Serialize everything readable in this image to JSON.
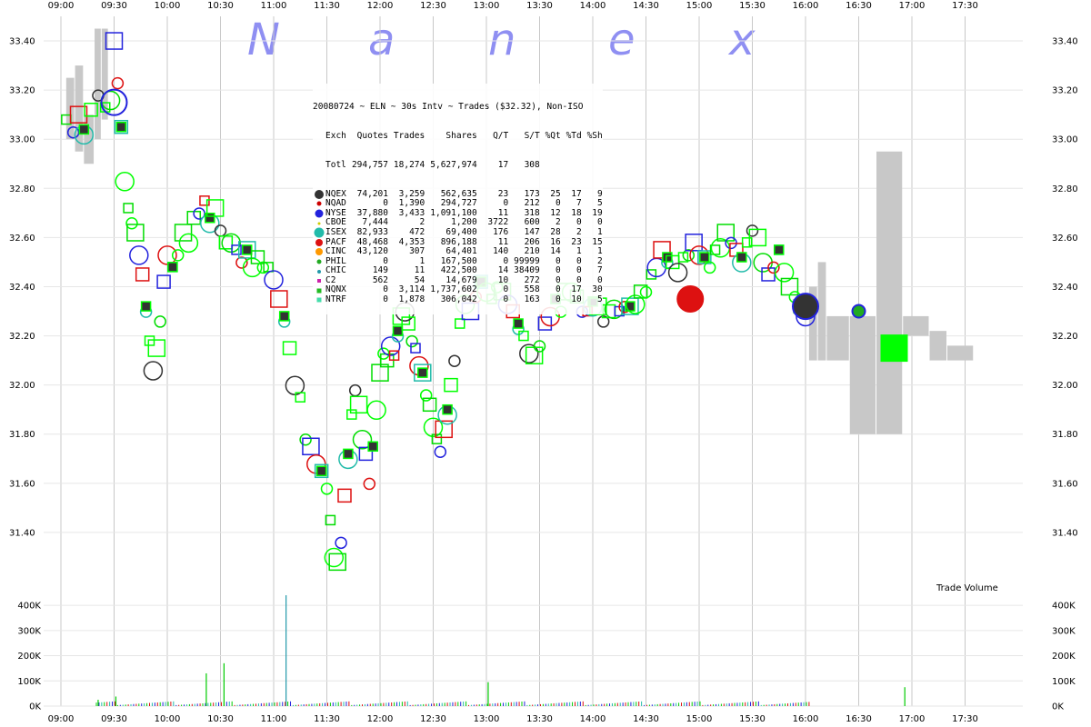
{
  "chart_data": {
    "type": "scatter",
    "title": "20080724 ~ ELN ~ 30s Intv ~ Trades ($32.32), Non-ISO",
    "watermark": [
      "N",
      "a",
      "n",
      "e",
      "x"
    ],
    "x_tick_labels": [
      "09:00",
      "09:30",
      "10:00",
      "10:30",
      "11:00",
      "11:30",
      "12:00",
      "12:30",
      "13:00",
      "13:30",
      "14:00",
      "14:30",
      "15:00",
      "15:30",
      "16:00",
      "16:30",
      "17:00",
      "17:30"
    ],
    "x_tick_minutes": [
      540,
      570,
      600,
      630,
      660,
      690,
      720,
      750,
      780,
      810,
      840,
      870,
      900,
      930,
      960,
      990,
      1020,
      1050
    ],
    "xlim_minutes": [
      540,
      1070
    ],
    "price_ticks": [
      33.4,
      33.2,
      33.0,
      32.8,
      32.6,
      32.4,
      32.2,
      32.0,
      31.8,
      31.6,
      31.4
    ],
    "price_tick_labels": [
      "33.40",
      "33.20",
      "33.00",
      "32.80",
      "32.60",
      "32.40",
      "32.20",
      "32.00",
      "31.80",
      "31.60",
      "31.40"
    ],
    "price_ylim": [
      31.2,
      33.5
    ],
    "volume_label": "Trade Volume",
    "volume_ticks": [
      0,
      100000,
      200000,
      300000,
      400000
    ],
    "volume_tick_labels": [
      "0K",
      "100K",
      "200K",
      "300K",
      "400K"
    ],
    "volume_ylim": [
      0,
      440000
    ],
    "grid": true,
    "colors": {
      "background": "#ffffff",
      "grid": "#c8c8c8",
      "nbbo_band": "#c8c8c8",
      "trade": "#00ff00"
    },
    "legend": {
      "headers": [
        "Exch",
        "Quotes",
        "Trades",
        "Shares",
        "Q/T",
        "S/T",
        "%Qt",
        "%Td",
        "%Sh"
      ],
      "total": {
        "name": "Totl",
        "quotes": "294,757",
        "trades": "18,274",
        "shares": "5,627,974",
        "qt": "17",
        "st": "308",
        "pqt": "",
        "ptd": "",
        "psh": ""
      },
      "rows": [
        {
          "name": "NQEX",
          "color": "#333333",
          "shape": "circle",
          "size": 10,
          "quotes": "74,201",
          "trades": "3,259",
          "shares": "562,635",
          "qt": "23",
          "st": "173",
          "pqt": "25",
          "ptd": "17",
          "psh": "9"
        },
        {
          "name": "NQAD",
          "color": "#cc0000",
          "shape": "circle",
          "size": 5,
          "quotes": "0",
          "trades": "1,390",
          "shares": "294,727",
          "qt": "0",
          "st": "212",
          "pqt": "0",
          "ptd": "7",
          "psh": "5"
        },
        {
          "name": "NYSE",
          "color": "#2222dd",
          "shape": "circle",
          "size": 9,
          "quotes": "37,880",
          "trades": "3,433",
          "shares": "1,091,100",
          "qt": "11",
          "st": "318",
          "pqt": "12",
          "ptd": "18",
          "psh": "19"
        },
        {
          "name": "CBOE",
          "color": "#cccc00",
          "shape": "circle",
          "size": 3,
          "quotes": "7,444",
          "trades": "2",
          "shares": "1,200",
          "qt": "3722",
          "st": "600",
          "pqt": "2",
          "ptd": "0",
          "psh": "0"
        },
        {
          "name": "ISEX",
          "color": "#22bbaa",
          "shape": "circle",
          "size": 11,
          "quotes": "82,933",
          "trades": "472",
          "shares": "69,400",
          "qt": "176",
          "st": "147",
          "pqt": "28",
          "ptd": "2",
          "psh": "1"
        },
        {
          "name": "PACF",
          "color": "#dd1111",
          "shape": "circle",
          "size": 8,
          "quotes": "48,468",
          "trades": "4,353",
          "shares": "896,188",
          "qt": "11",
          "st": "206",
          "pqt": "16",
          "ptd": "23",
          "psh": "15"
        },
        {
          "name": "CINC",
          "color": "#ff9900",
          "shape": "circle",
          "size": 8,
          "quotes": "43,120",
          "trades": "307",
          "shares": "64,401",
          "qt": "140",
          "st": "210",
          "pqt": "14",
          "ptd": "1",
          "psh": "1"
        },
        {
          "name": "PHIL",
          "color": "#22aa22",
          "shape": "circle",
          "size": 5,
          "quotes": "0",
          "trades": "1",
          "shares": "167,500",
          "qt": "0",
          "st": "99999",
          "pqt": "0",
          "ptd": "0",
          "psh": "2"
        },
        {
          "name": "CHIC",
          "color": "#2299aa",
          "shape": "circle",
          "size": 4,
          "quotes": "149",
          "trades": "11",
          "shares": "422,500",
          "qt": "14",
          "st": "38409",
          "pqt": "0",
          "ptd": "0",
          "psh": "7"
        },
        {
          "name": "C2",
          "color": "#cc22aa",
          "shape": "square",
          "size": 4,
          "quotes": "562",
          "trades": "54",
          "shares": "14,679",
          "qt": "10",
          "st": "272",
          "pqt": "0",
          "ptd": "0",
          "psh": "0"
        },
        {
          "name": "NQNX",
          "color": "#22bb22",
          "shape": "square",
          "size": 5,
          "quotes": "0",
          "trades": "3,114",
          "shares": "1,737,602",
          "qt": "0",
          "st": "558",
          "pqt": "0",
          "ptd": "17",
          "psh": "30"
        },
        {
          "name": "NTRF",
          "color": "#44ddaa",
          "shape": "square",
          "size": 5,
          "quotes": "0",
          "trades": "1,878",
          "shares": "306,042",
          "qt": "0",
          "st": "163",
          "pqt": "0",
          "ptd": "10",
          "psh": "5"
        }
      ]
    },
    "trade_path": [
      [
        543,
        33.08
      ],
      [
        547,
        33.05
      ],
      [
        550,
        33.1
      ],
      [
        553,
        33.04
      ],
      [
        557,
        33.12
      ],
      [
        561,
        33.2
      ],
      [
        565,
        33.13
      ],
      [
        568,
        33.18
      ],
      [
        570,
        33.4
      ],
      [
        572,
        33.25
      ],
      [
        574,
        33.05
      ],
      [
        576,
        32.85
      ],
      [
        578,
        32.72
      ],
      [
        580,
        32.68
      ],
      [
        582,
        32.62
      ],
      [
        584,
        32.55
      ],
      [
        586,
        32.45
      ],
      [
        588,
        32.32
      ],
      [
        590,
        32.18
      ],
      [
        592,
        32.08
      ],
      [
        594,
        32.15
      ],
      [
        596,
        32.28
      ],
      [
        598,
        32.42
      ],
      [
        600,
        32.55
      ],
      [
        603,
        32.48
      ],
      [
        606,
        32.55
      ],
      [
        609,
        32.62
      ],
      [
        612,
        32.6
      ],
      [
        615,
        32.68
      ],
      [
        618,
        32.72
      ],
      [
        621,
        32.75
      ],
      [
        624,
        32.68
      ],
      [
        627,
        32.72
      ],
      [
        630,
        32.65
      ],
      [
        633,
        32.58
      ],
      [
        636,
        32.6
      ],
      [
        639,
        32.55
      ],
      [
        642,
        32.52
      ],
      [
        645,
        32.55
      ],
      [
        648,
        32.5
      ],
      [
        651,
        32.52
      ],
      [
        654,
        32.5
      ],
      [
        657,
        32.48
      ],
      [
        660,
        32.45
      ],
      [
        663,
        32.35
      ],
      [
        666,
        32.28
      ],
      [
        669,
        32.15
      ],
      [
        672,
        32.02
      ],
      [
        675,
        31.95
      ],
      [
        678,
        31.8
      ],
      [
        681,
        31.75
      ],
      [
        684,
        31.7
      ],
      [
        687,
        31.65
      ],
      [
        690,
        31.6
      ],
      [
        692,
        31.45
      ],
      [
        694,
        31.32
      ],
      [
        696,
        31.28
      ],
      [
        698,
        31.38
      ],
      [
        700,
        31.55
      ],
      [
        702,
        31.72
      ],
      [
        704,
        31.88
      ],
      [
        706,
        32.0
      ],
      [
        708,
        31.92
      ],
      [
        710,
        31.8
      ],
      [
        712,
        31.72
      ],
      [
        714,
        31.62
      ],
      [
        716,
        31.75
      ],
      [
        718,
        31.92
      ],
      [
        720,
        32.05
      ],
      [
        722,
        32.15
      ],
      [
        724,
        32.1
      ],
      [
        726,
        32.18
      ],
      [
        728,
        32.12
      ],
      [
        730,
        32.22
      ],
      [
        732,
        32.28
      ],
      [
        734,
        32.32
      ],
      [
        736,
        32.25
      ],
      [
        738,
        32.2
      ],
      [
        740,
        32.15
      ],
      [
        742,
        32.1
      ],
      [
        744,
        32.05
      ],
      [
        746,
        31.98
      ],
      [
        748,
        31.92
      ],
      [
        750,
        31.85
      ],
      [
        752,
        31.78
      ],
      [
        754,
        31.75
      ],
      [
        756,
        31.82
      ],
      [
        758,
        31.9
      ],
      [
        760,
        32.0
      ],
      [
        762,
        32.12
      ],
      [
        765,
        32.25
      ],
      [
        768,
        32.35
      ],
      [
        771,
        32.3
      ],
      [
        774,
        32.38
      ],
      [
        777,
        32.42
      ],
      [
        780,
        32.4
      ],
      [
        783,
        32.35
      ],
      [
        786,
        32.42
      ],
      [
        789,
        32.38
      ],
      [
        792,
        32.35
      ],
      [
        795,
        32.3
      ],
      [
        798,
        32.25
      ],
      [
        801,
        32.2
      ],
      [
        804,
        32.15
      ],
      [
        807,
        32.12
      ],
      [
        810,
        32.18
      ],
      [
        813,
        32.25
      ],
      [
        816,
        32.3
      ],
      [
        819,
        32.35
      ],
      [
        822,
        32.32
      ],
      [
        825,
        32.38
      ],
      [
        828,
        32.4
      ],
      [
        831,
        32.36
      ],
      [
        834,
        32.32
      ],
      [
        837,
        32.3
      ],
      [
        840,
        32.34
      ],
      [
        843,
        32.32
      ],
      [
        846,
        32.28
      ],
      [
        849,
        32.3
      ],
      [
        852,
        32.33
      ],
      [
        855,
        32.3
      ],
      [
        858,
        32.34
      ],
      [
        861,
        32.32
      ],
      [
        864,
        32.35
      ],
      [
        867,
        32.38
      ],
      [
        870,
        32.4
      ],
      [
        873,
        32.45
      ],
      [
        876,
        32.5
      ],
      [
        879,
        32.55
      ],
      [
        882,
        32.52
      ],
      [
        885,
        32.5
      ],
      [
        888,
        32.48
      ],
      [
        891,
        32.52
      ],
      [
        894,
        32.55
      ],
      [
        897,
        32.58
      ],
      [
        900,
        32.55
      ],
      [
        903,
        32.52
      ],
      [
        906,
        32.5
      ],
      [
        909,
        32.55
      ],
      [
        912,
        32.58
      ],
      [
        915,
        32.62
      ],
      [
        918,
        32.6
      ],
      [
        921,
        32.55
      ],
      [
        924,
        32.52
      ],
      [
        927,
        32.58
      ],
      [
        930,
        32.65
      ],
      [
        933,
        32.6
      ],
      [
        936,
        32.52
      ],
      [
        939,
        32.45
      ],
      [
        942,
        32.5
      ],
      [
        945,
        32.55
      ],
      [
        948,
        32.48
      ],
      [
        951,
        32.4
      ],
      [
        954,
        32.38
      ],
      [
        957,
        32.32
      ],
      [
        960,
        32.3
      ]
    ],
    "highlight_markers": [
      {
        "minute": 570,
        "price": 33.15,
        "exch": "NYSE"
      },
      {
        "minute": 960,
        "price": 32.32,
        "exch": "NQEX"
      },
      {
        "minute": 895,
        "price": 32.35,
        "exch": "PACF"
      },
      {
        "minute": 990,
        "price": 32.3,
        "exch": "PHIL"
      },
      {
        "minute": 1010,
        "price": 32.15,
        "exch": "NQNX"
      }
    ],
    "nbbo_band": [
      [
        543,
        33.25,
        33.0
      ],
      [
        548,
        33.3,
        32.95
      ],
      [
        553,
        33.1,
        32.9
      ],
      [
        559,
        33.45,
        33.0
      ],
      [
        563,
        33.45,
        33.08
      ],
      [
        567,
        33.45,
        33.1
      ],
      [
        962,
        32.4,
        32.1
      ],
      [
        967,
        32.5,
        32.1
      ],
      [
        972,
        32.28,
        32.1
      ],
      [
        985,
        32.28,
        31.8
      ],
      [
        1000,
        32.95,
        31.8
      ],
      [
        1015,
        32.28,
        32.2
      ],
      [
        1030,
        32.22,
        32.1
      ],
      [
        1040,
        32.16,
        32.1
      ],
      [
        1055,
        32.16,
        32.1
      ]
    ],
    "volume_spikes": [
      {
        "minute": 561,
        "volume": 25000
      },
      {
        "minute": 571,
        "volume": 38000
      },
      {
        "minute": 622,
        "volume": 130000
      },
      {
        "minute": 632,
        "volume": 170000
      },
      {
        "minute": 667,
        "volume": 440000
      },
      {
        "minute": 781,
        "volume": 95000
      },
      {
        "minute": 1016,
        "volume": 75000
      }
    ]
  }
}
